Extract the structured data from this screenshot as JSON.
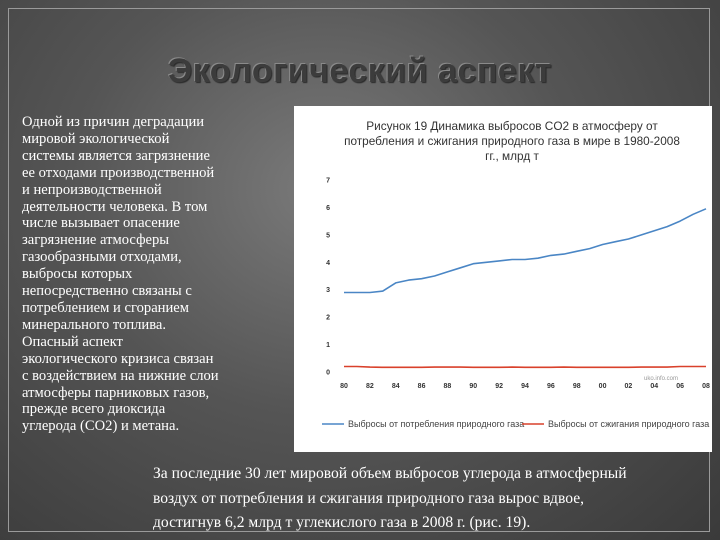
{
  "slide": {
    "title": "Экологический аспект",
    "left_paragraph_lines": [
      "Одной из причин деградации",
      "мировой экологической",
      "системы является загрязнение",
      "ее отходами производственной",
      "и непроизводственной",
      "деятельности человека. В том",
      "числе вызывает опасение",
      "загрязнение атмосферы",
      "газообразными отходами,",
      "выбросы которых",
      "непосредственно связаны с",
      "потреблением и сгоранием",
      "минерального топлива.",
      "Опасный аспект",
      "экологического кризиса связан",
      "с воздействием на нижние слои",
      "атмосферы парниковых газов,",
      "прежде всего диоксида",
      "углерода (СО2) и метана."
    ],
    "bottom_paragraph_lines": [
      "За последние 30 лет мировой объем выбросов углерода в атмосферный",
      "воздух от потребления и сжигания природного газа вырос вдвое,",
      "достигнув 6,2 млрд т углекислого газа в 2008 г. (рис. 19)."
    ]
  },
  "chart_data": {
    "type": "line",
    "title_lines": [
      "Рисунок 19 Динамика выбросов CO2 в атмосферу от",
      "потребления и сжигания природного газа в мире в 1980-2008",
      "гг., млрд т"
    ],
    "x": [
      1980,
      1981,
      1982,
      1983,
      1984,
      1985,
      1986,
      1987,
      1988,
      1989,
      1990,
      1991,
      1992,
      1993,
      1994,
      1995,
      1996,
      1997,
      1998,
      1999,
      2000,
      2001,
      2002,
      2003,
      2004,
      2005,
      2006,
      2007,
      2008
    ],
    "x_tick_labels": [
      "80",
      "82",
      "84",
      "86",
      "88",
      "90",
      "92",
      "94",
      "96",
      "98",
      "00",
      "02",
      "04",
      "06",
      "08"
    ],
    "y_ticks": [
      "0",
      "1",
      "2",
      "3",
      "4",
      "5",
      "6",
      "7"
    ],
    "ylim": [
      0,
      7
    ],
    "series": [
      {
        "name": "Выбросы от потребления природного газа",
        "color": "#4a86c5",
        "values": [
          2.9,
          2.9,
          2.9,
          2.95,
          3.25,
          3.35,
          3.4,
          3.5,
          3.65,
          3.8,
          3.95,
          4.0,
          4.05,
          4.1,
          4.1,
          4.15,
          4.25,
          4.3,
          4.4,
          4.5,
          4.65,
          4.75,
          4.85,
          5.0,
          5.15,
          5.3,
          5.5,
          5.75,
          5.95
        ]
      },
      {
        "name": "Выбросы от сжигания природного газа",
        "color": "#d9412b",
        "values": [
          0.2,
          0.2,
          0.18,
          0.17,
          0.17,
          0.17,
          0.17,
          0.18,
          0.18,
          0.18,
          0.17,
          0.17,
          0.17,
          0.18,
          0.17,
          0.17,
          0.17,
          0.18,
          0.17,
          0.17,
          0.17,
          0.17,
          0.17,
          0.18,
          0.18,
          0.18,
          0.2,
          0.2,
          0.2
        ]
      }
    ],
    "legend_placement": "bottom",
    "grid": false,
    "source_label": "uko.info.com"
  }
}
